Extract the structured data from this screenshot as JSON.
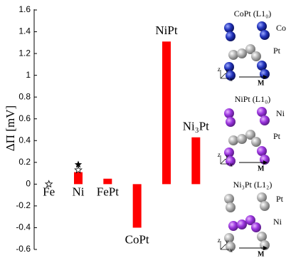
{
  "chart_data": {
    "type": "bar",
    "ylabel": "ΔΠ [mV]",
    "categories": [
      "Fe",
      "Ni",
      "FePt",
      "CoPt",
      "NiPt",
      "Ni₃Pt"
    ],
    "values": [
      0.0,
      0.11,
      0.05,
      -0.4,
      1.31,
      0.43
    ],
    "color": "#ff0000",
    "open_stars": [
      0.0,
      0.13,
      null,
      null,
      null,
      null
    ],
    "filled_stars": [
      null,
      0.18,
      null,
      null,
      null,
      null
    ],
    "ylim": [
      -0.6,
      1.6
    ],
    "yticks": [
      -0.6,
      -0.4,
      -0.2,
      0,
      0.2,
      0.4,
      0.6,
      0.8,
      1,
      1.2,
      1.4,
      1.6
    ]
  },
  "structures": [
    {
      "title": "CoPt (L1₀)",
      "labels": [
        "Co",
        "Pt"
      ],
      "axes": [
        "z",
        "y",
        "x",
        "M"
      ]
    },
    {
      "title": "NiPt (L1₀)",
      "labels": [
        "Ni",
        "Pt"
      ],
      "axes": [
        "z",
        "y",
        "x",
        "M"
      ]
    },
    {
      "title": "Ni₃Pt (L1₂)",
      "labels": [
        "Pt",
        "Ni"
      ],
      "axes": [
        "z",
        "y",
        "x",
        "M"
      ]
    }
  ]
}
